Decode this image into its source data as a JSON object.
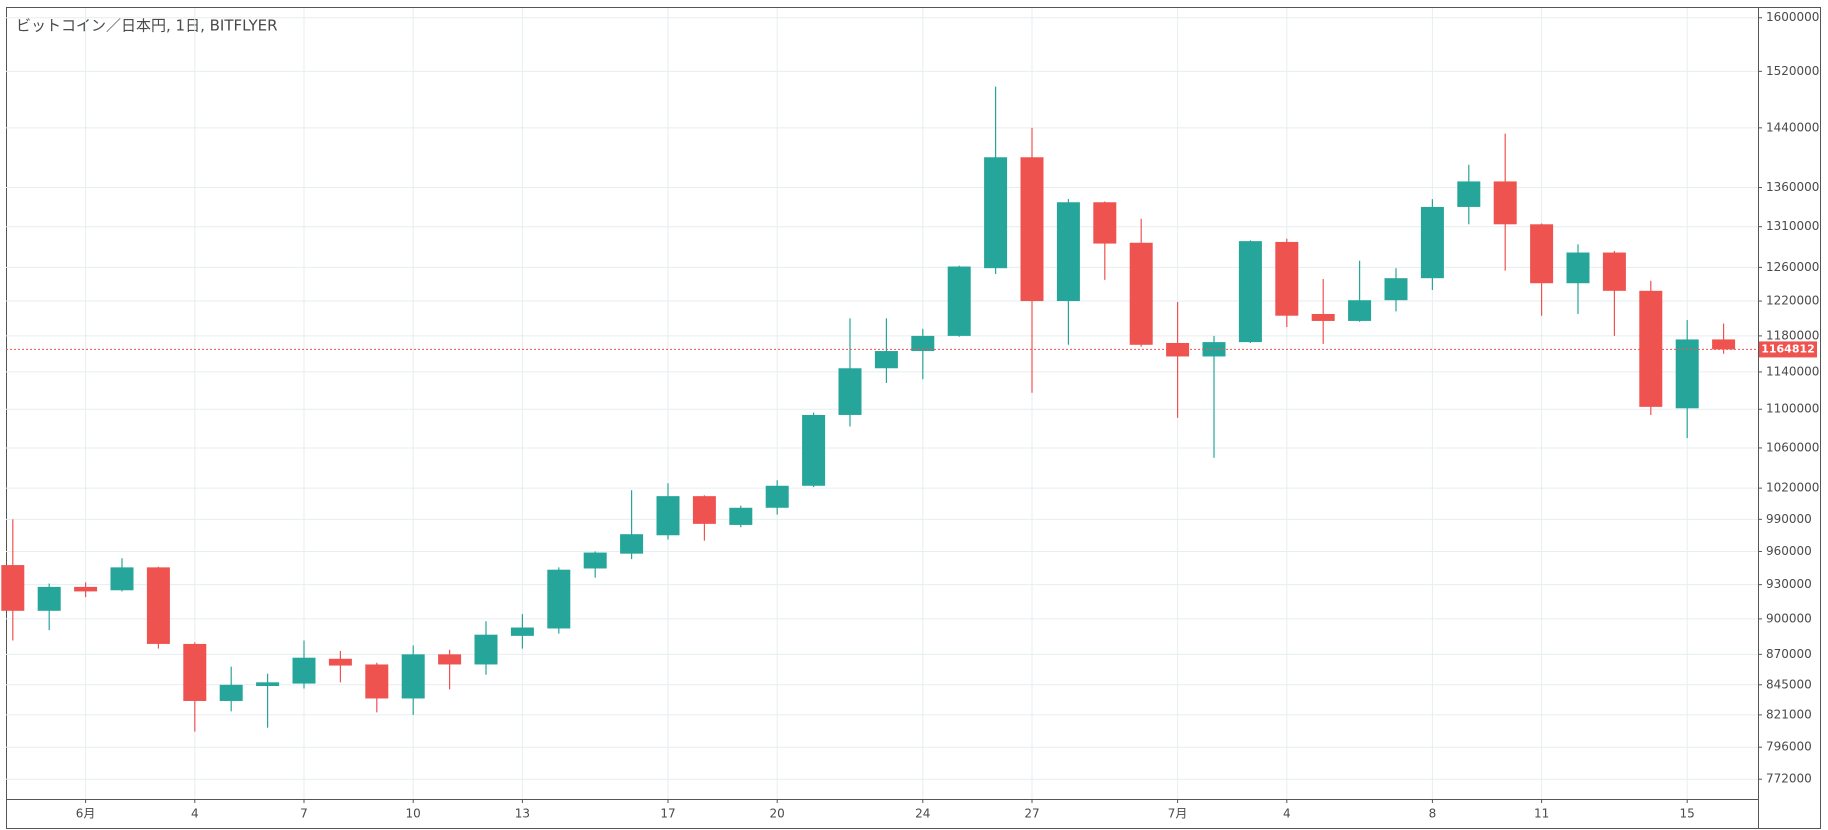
{
  "chart_data": {
    "type": "candlestick",
    "title": "ビットコイン／日本円, 1日, BITFLYER",
    "categories": [
      null,
      null,
      "6月",
      null,
      null,
      "4",
      null,
      null,
      "7",
      null,
      null,
      "10",
      null,
      null,
      "13",
      null,
      null,
      null,
      "17",
      null,
      null,
      "20",
      null,
      null,
      null,
      "24",
      null,
      null,
      "27",
      null,
      null,
      null,
      "7月",
      null,
      null,
      "4",
      null,
      null,
      null,
      "8",
      null,
      null,
      "11",
      null,
      null,
      null,
      "15",
      null
    ],
    "open": [
      947600,
      907000,
      928000,
      925000,
      945500,
      878700,
      832000,
      844000,
      846000,
      866300,
      861600,
      834000,
      870000,
      861600,
      885500,
      891800,
      944500,
      958000,
      975000,
      1012200,
      984700,
      1001000,
      1022300,
      1094000,
      1144000,
      1163000,
      1180000,
      1259000,
      1400000,
      1220000,
      1341000,
      1290000,
      1172000,
      1157000,
      1173000,
      1291000,
      1205000,
      1197000,
      1221000,
      1247000,
      1335000,
      1368000,
      1313000,
      1241000,
      1278000,
      1232000,
      1101000,
      1176000
    ],
    "high": [
      990000,
      931000,
      932000,
      953800,
      946000,
      880000,
      859800,
      854000,
      881600,
      872800,
      863000,
      877400,
      873800,
      898000,
      904100,
      945500,
      960000,
      1018000,
      1024800,
      1013000,
      1003000,
      1027700,
      1096500,
      1200000,
      1200000,
      1188000,
      1262000,
      1498000,
      1440000,
      1345000,
      1342000,
      1320000,
      1219000,
      1180000,
      1293000,
      1295000,
      1246000,
      1268000,
      1259000,
      1345000,
      1390000,
      1432000,
      1314000,
      1288000,
      1280000,
      1244000,
      1198000,
      1194000
    ],
    "low": [
      881600,
      890300,
      919000,
      924000,
      874800,
      808000,
      823800,
      811000,
      842000,
      847000,
      823000,
      821000,
      841300,
      853200,
      874800,
      887400,
      936200,
      953000,
      971000,
      970000,
      982500,
      994500,
      1021000,
      1082000,
      1128000,
      1132000,
      1179000,
      1252000,
      1117500,
      1170000,
      1245000,
      1168000,
      1091000,
      1050000,
      1172000,
      1190000,
      1171000,
      1196000,
      1208000,
      1233000,
      1313000,
      1256000,
      1203000,
      1205000,
      1180000,
      1094000,
      1070000,
      1160000
    ],
    "close": [
      907000,
      928000,
      924000,
      945500,
      878700,
      832000,
      845000,
      847000,
      867200,
      860700,
      834000,
      870000,
      861600,
      886500,
      892600,
      943400,
      959000,
      976000,
      1012200,
      985700,
      1001000,
      1022300,
      1094000,
      1144000,
      1163000,
      1180000,
      1261000,
      1400000,
      1220000,
      1341000,
      1289000,
      1170000,
      1157000,
      1173000,
      1292000,
      1203000,
      1197000,
      1221000,
      1247000,
      1335000,
      1368000,
      1313000,
      1241000,
      1278000,
      1232000,
      1102500,
      1176000,
      1164812
    ],
    "up_color": "#26a69a",
    "down_color": "#ef5350",
    "ylim": [
      757500,
      1615000
    ],
    "yticks": [
      772000,
      796000,
      821000,
      845000,
      870000,
      900000,
      930000,
      960000,
      990000,
      1020000,
      1060000,
      1100000,
      1140000,
      1180000,
      1220000,
      1260000,
      1310000,
      1360000,
      1440000,
      1520000,
      1600000
    ],
    "log_scale": true,
    "grid": true,
    "last_price": 1164812,
    "last_price_color": "#ef5350"
  }
}
